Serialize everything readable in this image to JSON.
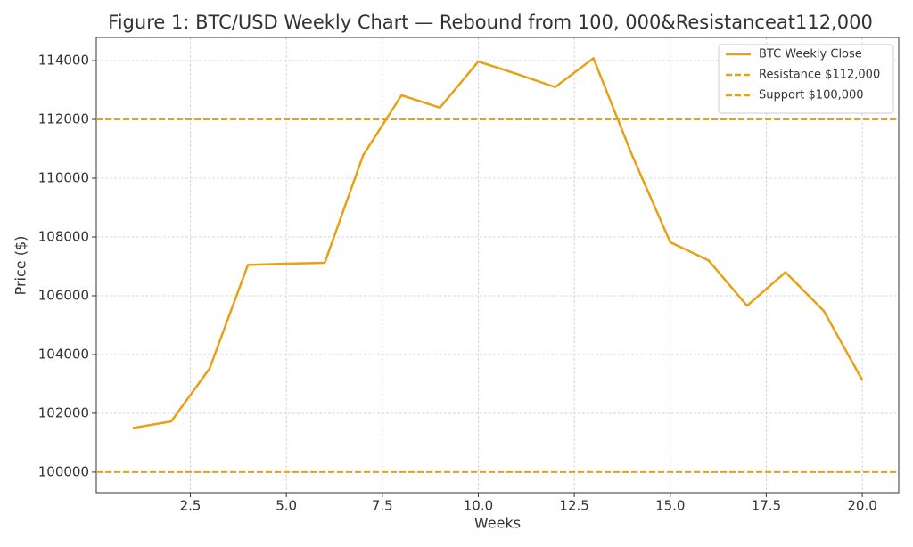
{
  "chart_data": {
    "type": "line",
    "title": "Figure 1: BTC/USD Weekly Chart — Rebound from 100, 000&Resistanceat112,000",
    "x_label": "Weeks",
    "y_label": "Price ($)",
    "x": [
      1,
      2,
      3,
      4,
      5,
      6,
      7,
      8,
      9,
      10,
      11,
      12,
      13,
      14,
      15,
      16,
      17,
      18,
      19,
      20
    ],
    "series": [
      {
        "name": "BTC Weekly Close",
        "color": "#e6a117",
        "values": [
          101500,
          101720,
          103520,
          107050,
          107090,
          107120,
          110780,
          112820,
          112400,
          113970,
          113550,
          113100,
          114080,
          110800,
          107820,
          107200,
          105660,
          106800,
          105480,
          103130
        ]
      }
    ],
    "hlines": [
      {
        "name": "Resistance $112,000",
        "value": 112000,
        "color": "#e6a117",
        "style": "dashed"
      },
      {
        "name": "Support $100,000",
        "value": 100000,
        "color": "#e6a117",
        "style": "dashed"
      }
    ],
    "xlim": [
      0.05,
      20.95
    ],
    "ylim": [
      99300,
      114790
    ],
    "xticks": [
      2.5,
      {
        "value": 5,
        "label": "5.0"
      },
      7.5,
      {
        "value": 10,
        "label": "10.0"
      },
      12.5,
      {
        "value": 15,
        "label": "15.0"
      },
      17.5,
      {
        "value": 20,
        "label": "20.0"
      }
    ],
    "yticks": [
      100000,
      102000,
      104000,
      106000,
      108000,
      110000,
      112000,
      114000
    ],
    "grid": true,
    "legend": "upper right"
  }
}
